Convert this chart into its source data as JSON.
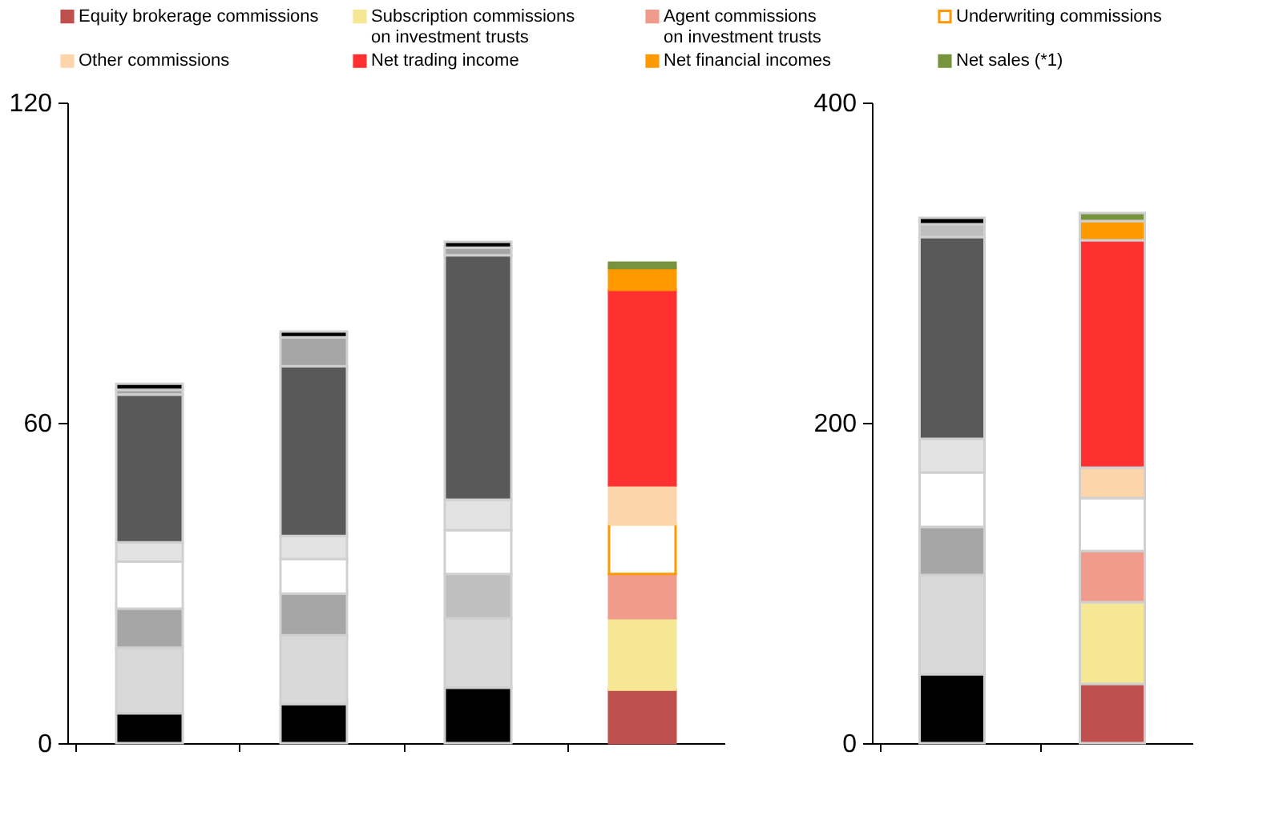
{
  "chart_data": [
    {
      "type": "bar",
      "stacked": true,
      "categories": [
        null,
        null,
        null,
        null
      ],
      "ylim": [
        0,
        120
      ],
      "yticks": [
        0,
        60,
        120
      ],
      "grid": false,
      "legend": "top",
      "tick_labels": "y",
      "series": [
        {
          "name": "Equity brokerage commissions",
          "color": "#c0504d",
          "colors": [
            "#000000",
            "#000000",
            "#000000",
            "#c0504d"
          ],
          "values": [
            5.6,
            7.3,
            10.4,
            10.0
          ]
        },
        {
          "name": "Subscription commissions\non investment trusts",
          "color": "#f5e794",
          "colors": [
            "#d9d9d9",
            "#d9d9d9",
            "#d9d9d9",
            "#f5e794"
          ],
          "values": [
            12.3,
            12.9,
            13.0,
            13.4
          ]
        },
        {
          "name": "Agent commissions\non investment trusts",
          "color": "#f19b8c",
          "colors": [
            "#a6a6a6",
            "#a6a6a6",
            "#bfbfbf",
            "#f19b8c"
          ],
          "values": [
            7.3,
            7.8,
            8.3,
            8.3
          ]
        },
        {
          "name": "Underwriting commissions",
          "color": "#ff9900",
          "colors": [
            "#ffffff",
            "#ffffff",
            "#ffffff",
            "#ffffff"
          ],
          "values": [
            8.8,
            6.5,
            8.2,
            9.3
          ]
        },
        {
          "name": "Other commissions",
          "color": "#fdd5ab",
          "colors": [
            "#e3e3e3",
            "#e3e3e3",
            "#e3e3e3",
            "#fdd5ab"
          ],
          "values": [
            3.6,
            4.3,
            5.7,
            7.3
          ]
        },
        {
          "name": "Net trading income",
          "color": "#ff3030",
          "colors": [
            "#595959",
            "#595959",
            "#595959",
            "#ff3030"
          ],
          "values": [
            27.7,
            31.8,
            45.8,
            36.6
          ]
        },
        {
          "name": "Net financial incomes",
          "color": "#ff9900",
          "colors": [
            "#a6a6a6",
            "#a6a6a6",
            "#a6a6a6",
            "#ff9900"
          ],
          "values": [
            0.9,
            5.4,
            1.4,
            4.1
          ]
        },
        {
          "name": "Net sales (*1)",
          "color": "#77933c",
          "colors": [
            "#000000",
            "#000000",
            "#000000",
            "#77933c"
          ],
          "values": [
            1.1,
            1.1,
            1.1,
            1.0
          ]
        }
      ]
    },
    {
      "type": "bar",
      "stacked": true,
      "categories": [
        null,
        null
      ],
      "ylim": [
        0,
        400
      ],
      "yticks": [
        0,
        200,
        400
      ],
      "grid": false,
      "tick_labels": "y",
      "series": [
        {
          "colors": [
            "#000000",
            "#c0504d"
          ],
          "values": [
            43,
            37
          ]
        },
        {
          "colors": [
            "#d9d9d9",
            "#f5e794"
          ],
          "values": [
            62,
            51
          ]
        },
        {
          "colors": [
            "#a6a6a6",
            "#f19b8c"
          ],
          "values": [
            30,
            32
          ]
        },
        {
          "colors": [
            "#ffffff",
            "#ffffff"
          ],
          "values": [
            34,
            33
          ]
        },
        {
          "colors": [
            "#e3e3e3",
            "#fdd5ab"
          ],
          "values": [
            21,
            19
          ]
        },
        {
          "colors": [
            "#595959",
            "#ff3030"
          ],
          "values": [
            126,
            142
          ]
        },
        {
          "colors": [
            "#bfbfbf",
            "#ff9900"
          ],
          "values": [
            8,
            12
          ]
        },
        {
          "colors": [
            "#000000",
            "#77933c"
          ],
          "values": [
            4,
            5
          ]
        }
      ]
    }
  ]
}
